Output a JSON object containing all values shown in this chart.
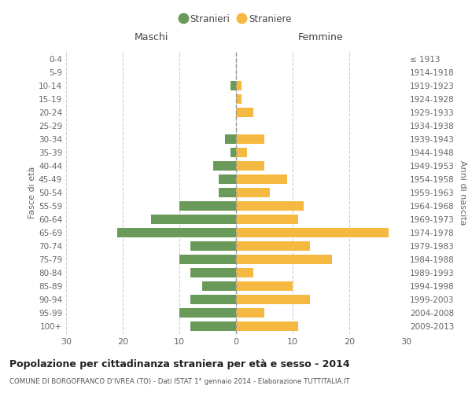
{
  "age_groups": [
    "100+",
    "95-99",
    "90-94",
    "85-89",
    "80-84",
    "75-79",
    "70-74",
    "65-69",
    "60-64",
    "55-59",
    "50-54",
    "45-49",
    "40-44",
    "35-39",
    "30-34",
    "25-29",
    "20-24",
    "15-19",
    "10-14",
    "5-9",
    "0-4"
  ],
  "birth_years": [
    "≤ 1913",
    "1914-1918",
    "1919-1923",
    "1924-1928",
    "1929-1933",
    "1934-1938",
    "1939-1943",
    "1944-1948",
    "1949-1953",
    "1954-1958",
    "1959-1963",
    "1964-1968",
    "1969-1973",
    "1974-1978",
    "1979-1983",
    "1984-1988",
    "1989-1993",
    "1994-1998",
    "1999-2003",
    "2004-2008",
    "2009-2013"
  ],
  "maschi": [
    0,
    0,
    1,
    0,
    0,
    0,
    2,
    1,
    4,
    3,
    3,
    10,
    15,
    21,
    8,
    10,
    8,
    6,
    8,
    10,
    8
  ],
  "femmine": [
    0,
    0,
    1,
    1,
    3,
    0,
    5,
    2,
    5,
    9,
    6,
    12,
    11,
    27,
    13,
    17,
    3,
    10,
    13,
    5,
    11
  ],
  "male_color": "#6a9a5a",
  "female_color": "#f5b942",
  "dashed_line_color": "#999999",
  "title": "Popolazione per cittadinanza straniera per età e sesso - 2014",
  "subtitle": "COMUNE DI BORGOFRANCO D'IVREA (TO) - Dati ISTAT 1° gennaio 2014 - Elaborazione TUTTITALIA.IT",
  "ylabel_left": "Fasce di età",
  "ylabel_right": "Anni di nascita",
  "header_left": "Maschi",
  "header_right": "Femmine",
  "legend_male": "Stranieri",
  "legend_female": "Straniere",
  "xlim": 30,
  "background_color": "#ffffff",
  "grid_color": "#cccccc",
  "bar_height": 0.72
}
